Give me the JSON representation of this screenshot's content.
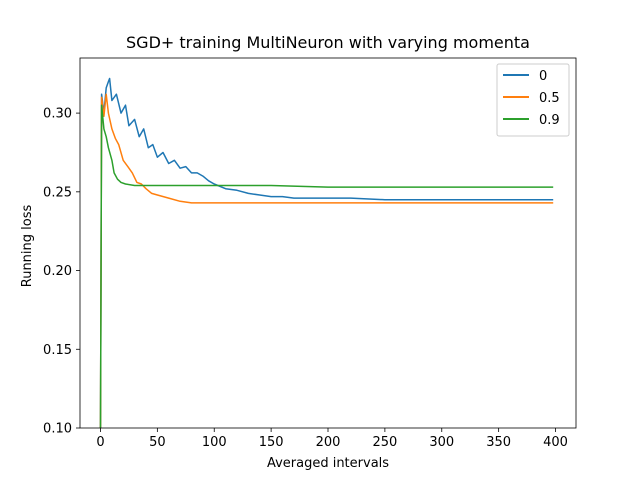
{
  "chart_data": {
    "type": "line",
    "title": "SGD+ training MultiNeuron with varying momenta",
    "xlabel": "Averaged intervals",
    "ylabel": "Running loss",
    "xlim": [
      -18,
      418
    ],
    "ylim": [
      0.1,
      0.335
    ],
    "xticks": [
      0,
      50,
      100,
      150,
      200,
      250,
      300,
      350,
      400
    ],
    "yticks": [
      0.1,
      0.15,
      0.2,
      0.25,
      0.3
    ],
    "ytick_labels": [
      "0.10",
      "0.15",
      "0.20",
      "0.25",
      "0.30"
    ],
    "grid": false,
    "legend": "top-right",
    "series": [
      {
        "name": "0",
        "color": "#1f77b4",
        "points": [
          [
            0,
            0.1
          ],
          [
            1,
            0.312
          ],
          [
            3,
            0.3
          ],
          [
            5,
            0.316
          ],
          [
            7,
            0.32
          ],
          [
            8,
            0.322
          ],
          [
            10,
            0.308
          ],
          [
            14,
            0.312
          ],
          [
            18,
            0.3
          ],
          [
            22,
            0.305
          ],
          [
            25,
            0.292
          ],
          [
            30,
            0.296
          ],
          [
            34,
            0.285
          ],
          [
            38,
            0.29
          ],
          [
            42,
            0.278
          ],
          [
            46,
            0.28
          ],
          [
            50,
            0.272
          ],
          [
            55,
            0.275
          ],
          [
            60,
            0.268
          ],
          [
            65,
            0.27
          ],
          [
            70,
            0.265
          ],
          [
            75,
            0.266
          ],
          [
            80,
            0.262
          ],
          [
            85,
            0.262
          ],
          [
            90,
            0.26
          ],
          [
            95,
            0.257
          ],
          [
            100,
            0.255
          ],
          [
            110,
            0.252
          ],
          [
            120,
            0.251
          ],
          [
            130,
            0.249
          ],
          [
            140,
            0.248
          ],
          [
            150,
            0.247
          ],
          [
            160,
            0.247
          ],
          [
            170,
            0.246
          ],
          [
            180,
            0.246
          ],
          [
            200,
            0.246
          ],
          [
            220,
            0.246
          ],
          [
            250,
            0.245
          ],
          [
            300,
            0.245
          ],
          [
            350,
            0.245
          ],
          [
            398,
            0.245
          ]
        ]
      },
      {
        "name": "0.5",
        "color": "#ff7f0e",
        "points": [
          [
            0,
            0.1
          ],
          [
            1,
            0.31
          ],
          [
            3,
            0.298
          ],
          [
            5,
            0.312
          ],
          [
            7,
            0.3
          ],
          [
            10,
            0.29
          ],
          [
            13,
            0.284
          ],
          [
            16,
            0.28
          ],
          [
            20,
            0.27
          ],
          [
            24,
            0.266
          ],
          [
            28,
            0.262
          ],
          [
            32,
            0.256
          ],
          [
            36,
            0.255
          ],
          [
            40,
            0.252
          ],
          [
            45,
            0.249
          ],
          [
            50,
            0.248
          ],
          [
            60,
            0.246
          ],
          [
            70,
            0.244
          ],
          [
            80,
            0.243
          ],
          [
            90,
            0.243
          ],
          [
            100,
            0.243
          ],
          [
            120,
            0.243
          ],
          [
            150,
            0.243
          ],
          [
            200,
            0.243
          ],
          [
            250,
            0.243
          ],
          [
            300,
            0.243
          ],
          [
            350,
            0.243
          ],
          [
            398,
            0.243
          ]
        ]
      },
      {
        "name": "0.9",
        "color": "#2ca02c",
        "points": [
          [
            0,
            0.1
          ],
          [
            1,
            0.305
          ],
          [
            3,
            0.29
          ],
          [
            5,
            0.285
          ],
          [
            7,
            0.278
          ],
          [
            10,
            0.27
          ],
          [
            12,
            0.262
          ],
          [
            15,
            0.258
          ],
          [
            18,
            0.256
          ],
          [
            22,
            0.255
          ],
          [
            30,
            0.254
          ],
          [
            50,
            0.254
          ],
          [
            100,
            0.254
          ],
          [
            150,
            0.254
          ],
          [
            200,
            0.253
          ],
          [
            250,
            0.253
          ],
          [
            300,
            0.253
          ],
          [
            350,
            0.253
          ],
          [
            398,
            0.253
          ]
        ]
      }
    ]
  }
}
